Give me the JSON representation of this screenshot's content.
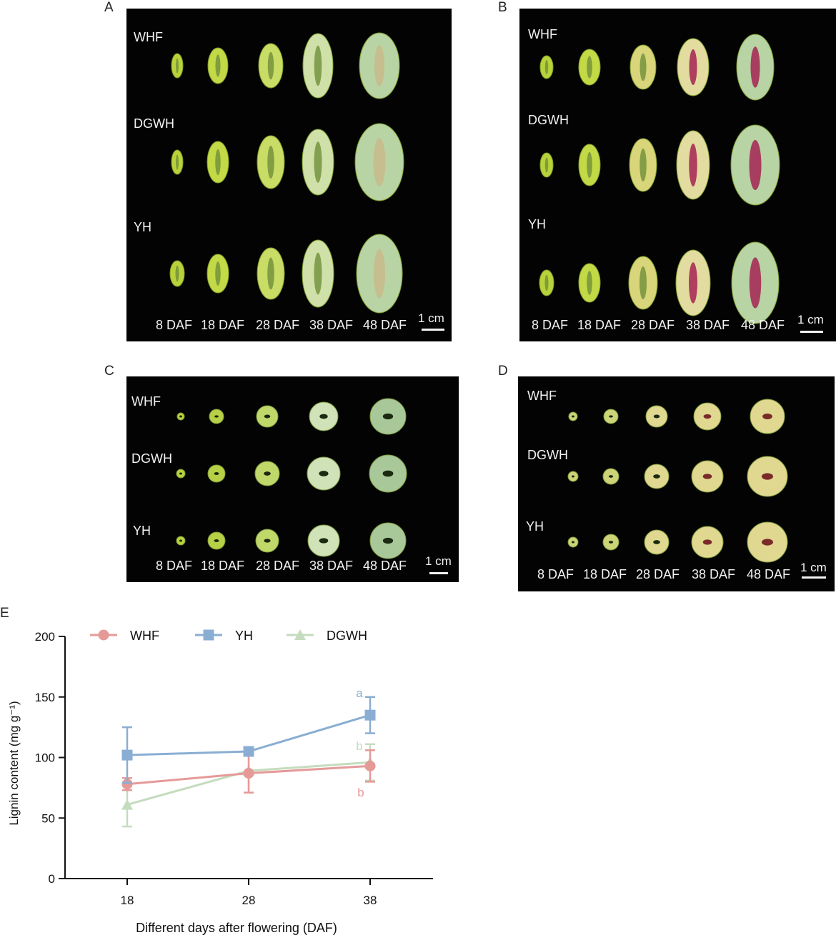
{
  "panels": {
    "A": {
      "letter": "A",
      "rows": [
        "WHF",
        "DGWH",
        "YH"
      ],
      "days": [
        "8 DAF",
        "18 DAF",
        "28 DAF",
        "38 DAF",
        "48 DAF"
      ],
      "scale": "1 cm"
    },
    "B": {
      "letter": "B",
      "rows": [
        "WHF",
        "DGWH",
        "YH"
      ],
      "days": [
        "8 DAF",
        "18 DAF",
        "28 DAF",
        "38 DAF",
        "48 DAF"
      ],
      "scale": "1 cm"
    },
    "C": {
      "letter": "C",
      "rows": [
        "WHF",
        "DGWH",
        "YH"
      ],
      "days": [
        "8 DAF",
        "18 DAF",
        "28 DAF",
        "38 DAF",
        "48 DAF"
      ],
      "scale": "1 cm"
    },
    "D": {
      "letter": "D",
      "rows": [
        "WHF",
        "DGWH",
        "YH"
      ],
      "days": [
        "8 DAF",
        "18 DAF",
        "28 DAF",
        "38 DAF",
        "48 DAF"
      ],
      "scale": "1 cm"
    },
    "E": {
      "letter": "E"
    }
  },
  "colors": {
    "WHF": "#e59a98",
    "YH": "#8aaed3",
    "DGWH": "#c4dcbe",
    "photo_bg": "#030303"
  },
  "chart_data": {
    "type": "line",
    "xlabel": "Different days after flowering (DAF)",
    "ylabel": "Lignin content (mg g⁻¹)",
    "x": [
      18,
      28,
      38
    ],
    "xticks": [
      "18",
      "28",
      "38"
    ],
    "yticks": [
      "0",
      "50",
      "100",
      "150",
      "200"
    ],
    "ylim": [
      0,
      200
    ],
    "legend_position": "top",
    "series": [
      {
        "name": "WHF",
        "marker": "circle",
        "values": [
          78,
          87,
          93
        ],
        "errors": [
          5,
          16,
          13
        ]
      },
      {
        "name": "YH",
        "marker": "square",
        "values": [
          102,
          105,
          135
        ],
        "errors": [
          23,
          2,
          15
        ]
      },
      {
        "name": "DGWH",
        "marker": "triangle",
        "values": [
          61,
          89,
          96
        ],
        "errors": [
          18,
          18,
          15
        ]
      }
    ],
    "annotations": [
      {
        "text": "a",
        "x": 38,
        "series": "YH"
      },
      {
        "text": "b",
        "x": 38,
        "series": "DGWH"
      },
      {
        "text": "b",
        "x": 38,
        "series": "WHF"
      }
    ]
  }
}
